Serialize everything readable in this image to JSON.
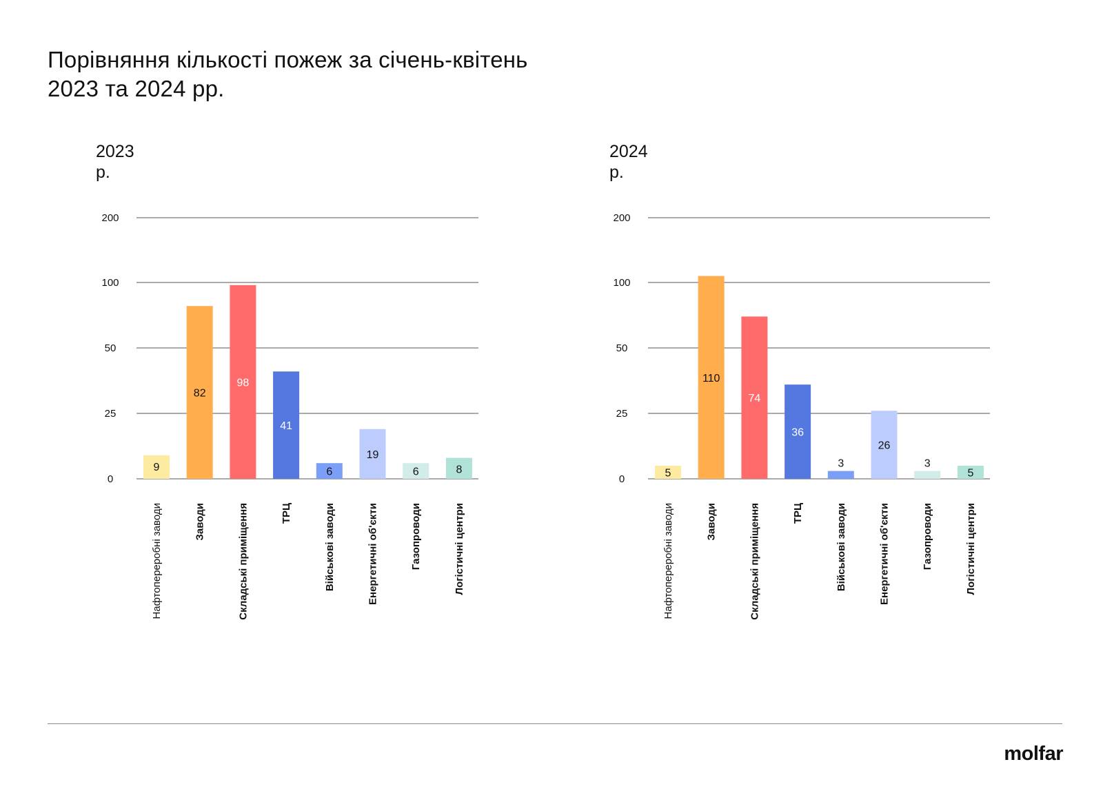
{
  "title_lines": [
    "Порівняння кількості пожеж за січень-квітень",
    "2023 та 2024 рр."
  ],
  "logo": "molfar",
  "chart_data": [
    {
      "type": "bar",
      "title": "2023 р.",
      "categories": [
        "Нафтопереробні заводи",
        "Заводи",
        "Складські приміщення",
        "ТРЦ",
        "Військові заводи",
        "Енергетичні об'єкти",
        "Газопроводи",
        "Логістичні центри"
      ],
      "values": [
        9,
        82,
        98,
        41,
        6,
        19,
        6,
        8
      ],
      "y_ticks": [
        0,
        25,
        50,
        100,
        200
      ],
      "y_scale": "piecewise",
      "grid": true
    },
    {
      "type": "bar",
      "title": "2024 р.",
      "categories": [
        "Нафтопереробні заводи",
        "Заводи",
        "Складські приміщення",
        "ТРЦ",
        "Військові заводи",
        "Енергетичні об'єкти",
        "Газопроводи",
        "Логістичні центри"
      ],
      "values": [
        5,
        110,
        74,
        36,
        3,
        26,
        3,
        5
      ],
      "y_ticks": [
        0,
        25,
        50,
        100,
        200
      ],
      "y_scale": "piecewise",
      "grid": true
    }
  ],
  "colors": {
    "bars": [
      "#FCEBA0",
      "#FFAD4D",
      "#FF6B6B",
      "#5577E0",
      "#7B9FF7",
      "#BCCDFD",
      "#D2ECE9",
      "#B0E2D8"
    ],
    "value_text": [
      "#111111",
      "#111111",
      "#ffffff",
      "#ffffff",
      "#111111",
      "#111111",
      "#111111",
      "#111111"
    ]
  }
}
